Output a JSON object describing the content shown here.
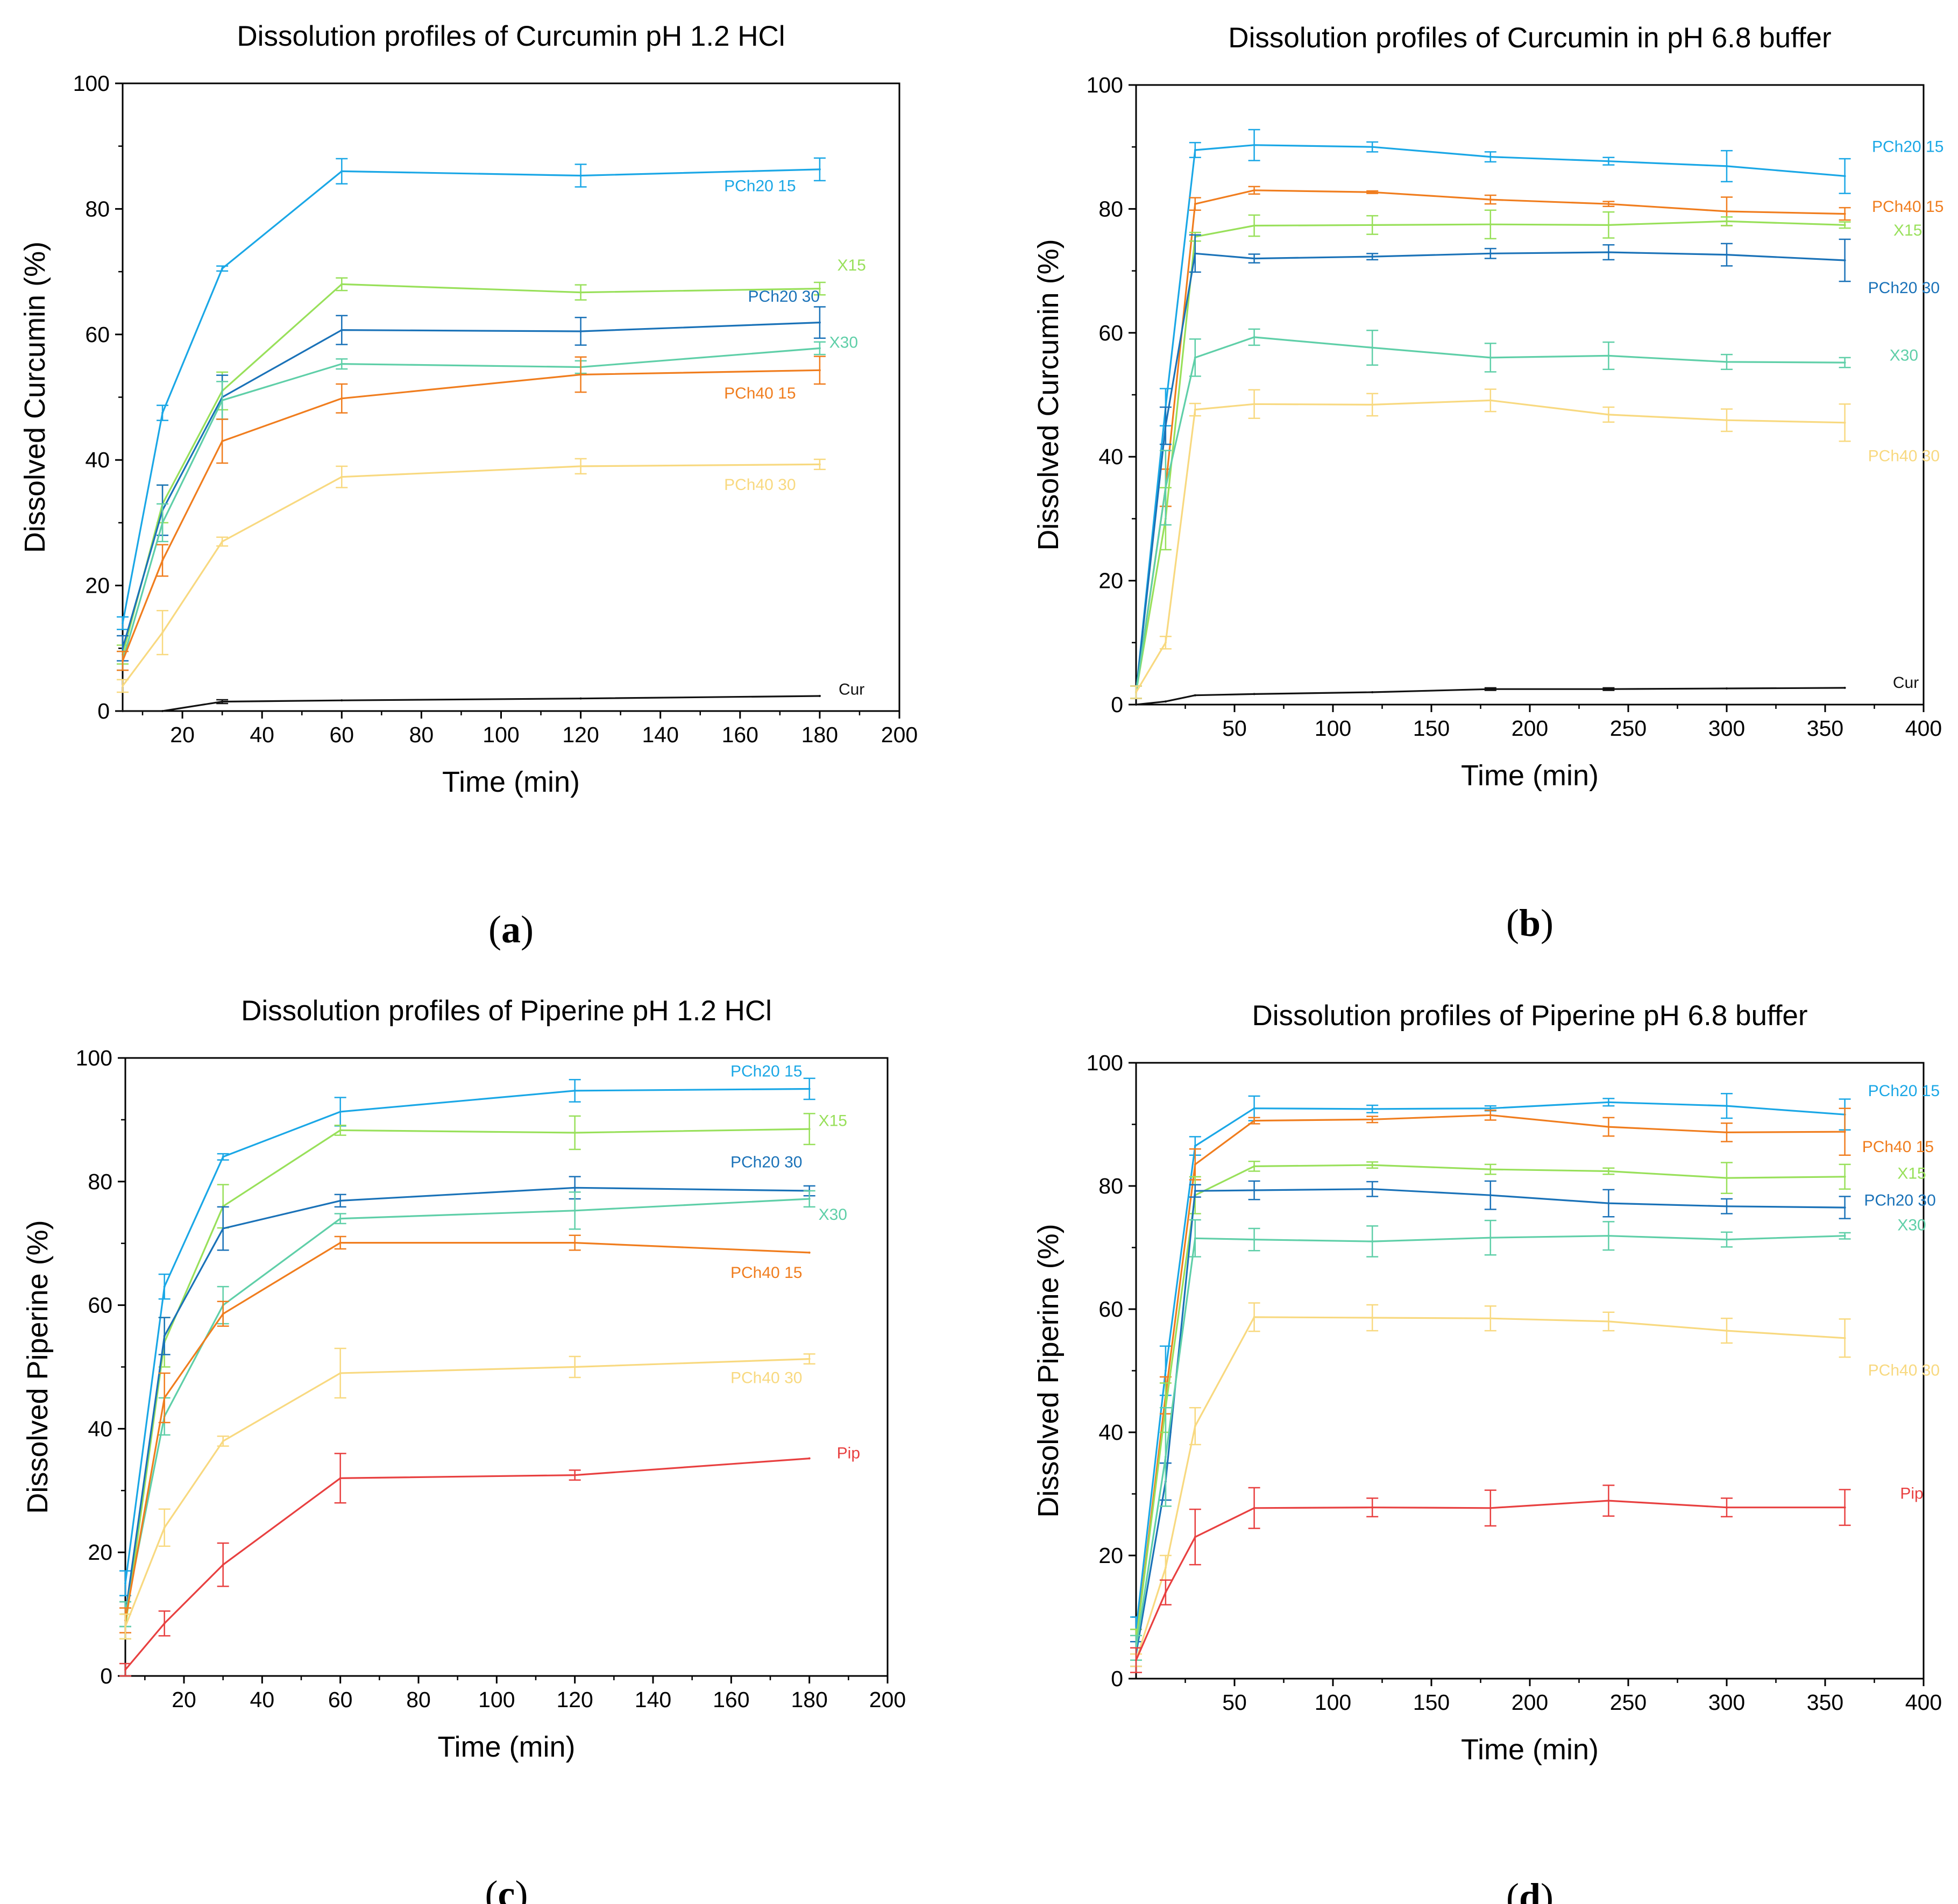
{
  "colors": {
    "PCh20 15": "#1aa7e6",
    "PCh20 30": "#1a72b8",
    "PCh40 15": "#f07d1e",
    "PCh40 30": "#f8d980",
    "X15": "#98e05a",
    "X30": "#5fcfa8",
    "Cur": "#111111",
    "Pip": "#e84040"
  },
  "chart_data": [
    {
      "id": "a",
      "panel_label": "a",
      "type": "line",
      "title": "Dissolution profiles of Curcumin pH 1.2 HCl",
      "xlabel": "Time (min)",
      "ylabel": "Dissolved Curcumin (%)",
      "xlim": [
        5,
        200
      ],
      "ylim": [
        0,
        100
      ],
      "xticks": [
        20,
        40,
        60,
        80,
        100,
        120,
        140,
        160,
        180,
        200
      ],
      "yticks": [
        0,
        20,
        40,
        60,
        80,
        100
      ],
      "x": [
        5,
        15,
        30,
        60,
        120,
        180
      ],
      "series": [
        {
          "name": "PCh20 15",
          "values": [
            14,
            47.5,
            70.5,
            86,
            85.3,
            86.3
          ],
          "errors": [
            1,
            1.2,
            0.4,
            2,
            1.8,
            1.8
          ]
        },
        {
          "name": "X15",
          "values": [
            9,
            33,
            51,
            68,
            66.7,
            67.3
          ],
          "errors": [
            1.5,
            3,
            3,
            1,
            1.2,
            1
          ]
        },
        {
          "name": "PCh20 30",
          "values": [
            10,
            32,
            50,
            60.7,
            60.5,
            61.9
          ],
          "errors": [
            2,
            4,
            3.5,
            2.3,
            2.2,
            2.5
          ]
        },
        {
          "name": "X30",
          "values": [
            8,
            30,
            49.5,
            55.3,
            54.8,
            57.8
          ],
          "errors": [
            1.5,
            3,
            3,
            0.8,
            1,
            1
          ]
        },
        {
          "name": "PCh40 15",
          "values": [
            8,
            24,
            43,
            49.8,
            53.6,
            54.3
          ],
          "errors": [
            1.5,
            2.5,
            3.5,
            2.3,
            2.8,
            2.2
          ]
        },
        {
          "name": "PCh40 30",
          "values": [
            4,
            12.5,
            27,
            37.3,
            39,
            39.3
          ],
          "errors": [
            1,
            3.5,
            0.7,
            1.7,
            1.2,
            0.8
          ]
        },
        {
          "name": "Cur",
          "values": [
            0,
            0,
            1.5,
            1.7,
            2,
            2.4
          ],
          "errors": [
            0,
            0,
            0.3,
            0,
            0,
            0
          ]
        }
      ],
      "annotations": [
        {
          "text": "PCh20 15",
          "series": "PCh20 15",
          "at": [
            165,
            82.8
          ]
        },
        {
          "text": "X15",
          "series": "X15",
          "at": [
            188,
            70.2
          ]
        },
        {
          "text": "PCh20 30",
          "series": "PCh20 30",
          "at": [
            171,
            65.2
          ]
        },
        {
          "text": "X30",
          "series": "X30",
          "at": [
            186,
            57.9
          ]
        },
        {
          "text": "PCh40 15",
          "series": "PCh40 15",
          "at": [
            165,
            49.8
          ]
        },
        {
          "text": "PCh40 30",
          "series": "PCh40 30",
          "at": [
            165,
            35.2
          ]
        },
        {
          "text": "Cur",
          "series": "Cur",
          "at": [
            188,
            2.6
          ]
        }
      ]
    },
    {
      "id": "b",
      "panel_label": "b",
      "type": "line",
      "title": "Dissolution profiles of Curcumin in pH 6.8 buffer",
      "xlabel": "Time (min)",
      "ylabel": "Dissolved Curcumin (%)",
      "xlim": [
        0,
        400
      ],
      "ylim": [
        0,
        100
      ],
      "xticks": [
        50,
        100,
        150,
        200,
        250,
        300,
        350,
        400
      ],
      "yticks": [
        0,
        20,
        40,
        60,
        80,
        100
      ],
      "x": [
        0,
        15,
        30,
        60,
        120,
        180,
        240,
        300,
        360
      ],
      "series": [
        {
          "name": "PCh20 15",
          "values": [
            2,
            48,
            89.5,
            90.3,
            90,
            88.4,
            87.7,
            86.9,
            85.3
          ],
          "errors": [
            1,
            3,
            1.2,
            2.5,
            0.8,
            0.8,
            0.6,
            2.5,
            2.8
          ]
        },
        {
          "name": "PCh40 15",
          "values": [
            2,
            35,
            80.8,
            83,
            82.7,
            81.5,
            80.8,
            79.6,
            79.2
          ],
          "errors": [
            1,
            3,
            1,
            0.6,
            0.2,
            0.7,
            0.4,
            2.3,
            1
          ]
        },
        {
          "name": "X15",
          "values": [
            2,
            30,
            75.5,
            77.3,
            77.4,
            77.5,
            77.4,
            78,
            77.4
          ],
          "errors": [
            1,
            5,
            0.7,
            1.7,
            1.5,
            2.3,
            2.1,
            0.7,
            0.5
          ]
        },
        {
          "name": "PCh20 30",
          "values": [
            2,
            45,
            72.8,
            72,
            72.3,
            72.8,
            73,
            72.6,
            71.7
          ],
          "errors": [
            1,
            3,
            3,
            0.7,
            0.5,
            0.8,
            1.2,
            1.8,
            3.4
          ]
        },
        {
          "name": "X30",
          "values": [
            2,
            35,
            56,
            59.3,
            57.6,
            56,
            56.3,
            55.3,
            55.2
          ],
          "errors": [
            1,
            6,
            3,
            1.3,
            2.8,
            2.3,
            2.2,
            1.2,
            0.8
          ]
        },
        {
          "name": "PCh40 30",
          "values": [
            2,
            10,
            47.6,
            48.5,
            48.4,
            49.1,
            46.8,
            45.9,
            45.5
          ],
          "errors": [
            1,
            1,
            1,
            2.3,
            1.8,
            1.8,
            1.2,
            1.8,
            3
          ]
        },
        {
          "name": "Cur",
          "values": [
            0,
            0.5,
            1.5,
            1.7,
            2,
            2.5,
            2.5,
            2.6,
            2.7
          ],
          "errors": [
            0,
            0,
            0,
            0,
            0,
            0.2,
            0.2,
            0,
            0
          ]
        }
      ],
      "annotations": [
        {
          "text": "PCh20 15",
          "series": "PCh20 15",
          "at": [
            392,
            89.2
          ]
        },
        {
          "text": "PCh40 15",
          "series": "PCh40 15",
          "at": [
            392,
            79.5
          ]
        },
        {
          "text": "X15",
          "series": "X15",
          "at": [
            392,
            75.7
          ]
        },
        {
          "text": "PCh20 30",
          "series": "PCh20 30",
          "at": [
            390,
            66.4
          ]
        },
        {
          "text": "X30",
          "series": "X30",
          "at": [
            390,
            55.5
          ]
        },
        {
          "text": "PCh40 30",
          "series": "PCh40 30",
          "at": [
            390,
            39.3
          ]
        },
        {
          "text": "Cur",
          "series": "Cur",
          "at": [
            391,
            2.7
          ]
        }
      ]
    },
    {
      "id": "c",
      "panel_label": "c",
      "type": "line",
      "title": "Dissolution profiles of Piperine pH 1.2 HCl",
      "xlabel": "Time (min)",
      "ylabel": "Dissolved Piperine (%)",
      "xlim": [
        5,
        200
      ],
      "ylim": [
        0,
        100
      ],
      "xticks": [
        20,
        40,
        60,
        80,
        100,
        120,
        140,
        160,
        180,
        200
      ],
      "yticks": [
        0,
        20,
        40,
        60,
        80,
        100
      ],
      "x": [
        5,
        15,
        30,
        60,
        120,
        180
      ],
      "series": [
        {
          "name": "PCh20 15",
          "values": [
            15,
            63,
            84,
            91.3,
            94.7,
            95
          ],
          "errors": [
            2,
            2,
            0.5,
            2.3,
            1.8,
            1.7
          ]
        },
        {
          "name": "X15",
          "values": [
            8,
            54,
            76,
            88.3,
            87.9,
            88.5
          ],
          "errors": [
            2,
            4,
            3.5,
            0.8,
            2.7,
            2.5
          ]
        },
        {
          "name": "PCh20 30",
          "values": [
            10,
            55,
            72.4,
            76.9,
            79,
            78.5
          ],
          "errors": [
            2,
            3,
            3.5,
            1,
            1.8,
            0.8
          ]
        },
        {
          "name": "X30",
          "values": [
            10,
            42,
            60,
            74,
            75.3,
            77.2
          ],
          "errors": [
            2,
            3,
            3,
            0.8,
            3,
            1.3
          ]
        },
        {
          "name": "PCh40 15",
          "values": [
            9,
            45,
            58.6,
            70.1,
            70.1,
            68.5
          ],
          "errors": [
            2,
            4,
            2,
            1,
            1.2,
            0
          ]
        },
        {
          "name": "PCh40 30",
          "values": [
            8,
            24,
            38,
            49,
            50,
            51.3
          ],
          "errors": [
            2,
            3,
            0.8,
            4,
            1.7,
            0.8
          ]
        },
        {
          "name": "Pip",
          "values": [
            1,
            8.5,
            18,
            32,
            32.5,
            35.2
          ],
          "errors": [
            1,
            2,
            3.5,
            4,
            0.8,
            0
          ]
        }
      ],
      "annotations": [
        {
          "text": "PCh20 15",
          "series": "PCh20 15",
          "at": [
            169,
            97
          ]
        },
        {
          "text": "X15",
          "series": "X15",
          "at": [
            186,
            89
          ]
        },
        {
          "text": "PCh20 30",
          "series": "PCh20 30",
          "at": [
            169,
            82.3
          ]
        },
        {
          "text": "X30",
          "series": "X30",
          "at": [
            186,
            73.8
          ]
        },
        {
          "text": "PCh40 15",
          "series": "PCh40 15",
          "at": [
            169,
            64.4
          ]
        },
        {
          "text": "PCh40 30",
          "series": "PCh40 30",
          "at": [
            169,
            47.4
          ]
        },
        {
          "text": "Pip",
          "series": "Pip",
          "at": [
            190,
            35.2
          ]
        }
      ]
    },
    {
      "id": "d",
      "panel_label": "d",
      "type": "line",
      "title": "Dissolution profiles of Piperine pH 6.8 buffer",
      "xlabel": "Time (min)",
      "ylabel": "Dissolved Piperine (%)",
      "xlim": [
        0,
        400
      ],
      "ylim": [
        0,
        100
      ],
      "xticks": [
        50,
        100,
        150,
        200,
        250,
        300,
        350,
        400
      ],
      "yticks": [
        0,
        20,
        40,
        60,
        80,
        100
      ],
      "x": [
        0,
        15,
        30,
        60,
        120,
        180,
        240,
        300,
        360
      ],
      "series": [
        {
          "name": "PCh20 15",
          "values": [
            8,
            50,
            86.5,
            92.6,
            92.5,
            92.6,
            93.6,
            93,
            91.6
          ],
          "errors": [
            2,
            4,
            1.5,
            2,
            0.6,
            0.4,
            0.6,
            2,
            2.5
          ]
        },
        {
          "name": "PCh40 15",
          "values": [
            6,
            46,
            83.5,
            90.6,
            90.8,
            91.5,
            89.6,
            88.7,
            88.8
          ],
          "errors": [
            2,
            3,
            2.5,
            0.5,
            0.5,
            0.8,
            1.5,
            1.5,
            3.8
          ]
        },
        {
          "name": "X15",
          "values": [
            6,
            44,
            78.5,
            83.2,
            83.4,
            82.7,
            82.4,
            81.3,
            81.5
          ],
          "errors": [
            2,
            4,
            3,
            0.8,
            0.5,
            0.8,
            0.5,
            2.5,
            2
          ]
        },
        {
          "name": "PCh20 30",
          "values": [
            4,
            32,
            79.2,
            79.3,
            79.5,
            78.5,
            77.2,
            76.7,
            76.5
          ],
          "errors": [
            2,
            3,
            1,
            1.5,
            1.2,
            2.3,
            2.2,
            1.2,
            1.8
          ]
        },
        {
          "name": "X30",
          "values": [
            5,
            36,
            71.5,
            71.3,
            71,
            71.6,
            71.9,
            71.3,
            71.9
          ],
          "errors": [
            2,
            8,
            3,
            1.8,
            2.5,
            2.8,
            2.3,
            1.2,
            0.5
          ]
        },
        {
          "name": "PCh40 30",
          "values": [
            3,
            18,
            41,
            58.7,
            58.6,
            58.5,
            58,
            56.5,
            55.3
          ],
          "errors": [
            1,
            2,
            3,
            2.3,
            2.1,
            2,
            1.5,
            2,
            3.1
          ]
        },
        {
          "name": "Pip",
          "values": [
            3,
            14,
            23,
            27.7,
            27.8,
            27.7,
            28.9,
            27.8,
            27.8
          ],
          "errors": [
            2,
            2,
            4.5,
            3.3,
            1.5,
            2.9,
            2.5,
            1.5,
            2.9
          ]
        }
      ],
      "annotations": [
        {
          "text": "PCh20 15",
          "series": "PCh20 15",
          "at": [
            390,
            94.6
          ]
        },
        {
          "text": "PCh40 15",
          "series": "PCh40 15",
          "at": [
            387,
            85.5
          ]
        },
        {
          "text": "X15",
          "series": "X15",
          "at": [
            394,
            81.2
          ]
        },
        {
          "text": "PCh20 30",
          "series": "PCh20 30",
          "at": [
            388,
            76.8
          ]
        },
        {
          "text": "X30",
          "series": "X30",
          "at": [
            394,
            72.8
          ]
        },
        {
          "text": "PCh40 30",
          "series": "PCh40 30",
          "at": [
            390,
            49.2
          ]
        },
        {
          "text": "Pip",
          "series": "Pip",
          "at": [
            394,
            29.2
          ]
        }
      ]
    }
  ]
}
